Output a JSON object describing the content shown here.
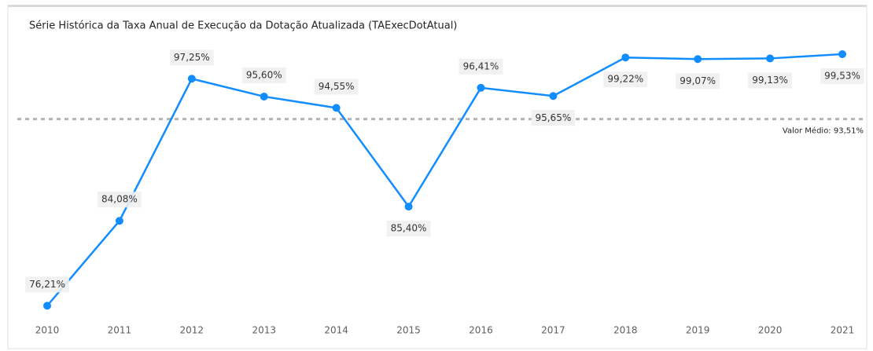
{
  "chart_data": {
    "type": "line",
    "title": "Série Histórica da Taxa Anual de Execução da Dotação Atualizada (TAExecDotAtual)",
    "categories": [
      "2010",
      "2011",
      "2012",
      "2013",
      "2014",
      "2015",
      "2016",
      "2017",
      "2018",
      "2019",
      "2020",
      "2021"
    ],
    "series": [
      {
        "color": "#118dff",
        "values": [
          76.21,
          84.08,
          97.25,
          95.6,
          94.55,
          85.4,
          96.41,
          95.65,
          99.22,
          99.07,
          99.13,
          99.53
        ],
        "value_labels": [
          "76,21%",
          "84,08%",
          "97,25%",
          "95,60%",
          "94,55%",
          "85,40%",
          "96,41%",
          "95,65%",
          "99,22%",
          "99,07%",
          "99,13%",
          "99,53%"
        ]
      }
    ],
    "reference_line": {
      "value": 93.51,
      "label": "Valor Médio: 93,51%",
      "color": "#b3b3b3"
    },
    "ylim": [
      75,
      102
    ]
  }
}
